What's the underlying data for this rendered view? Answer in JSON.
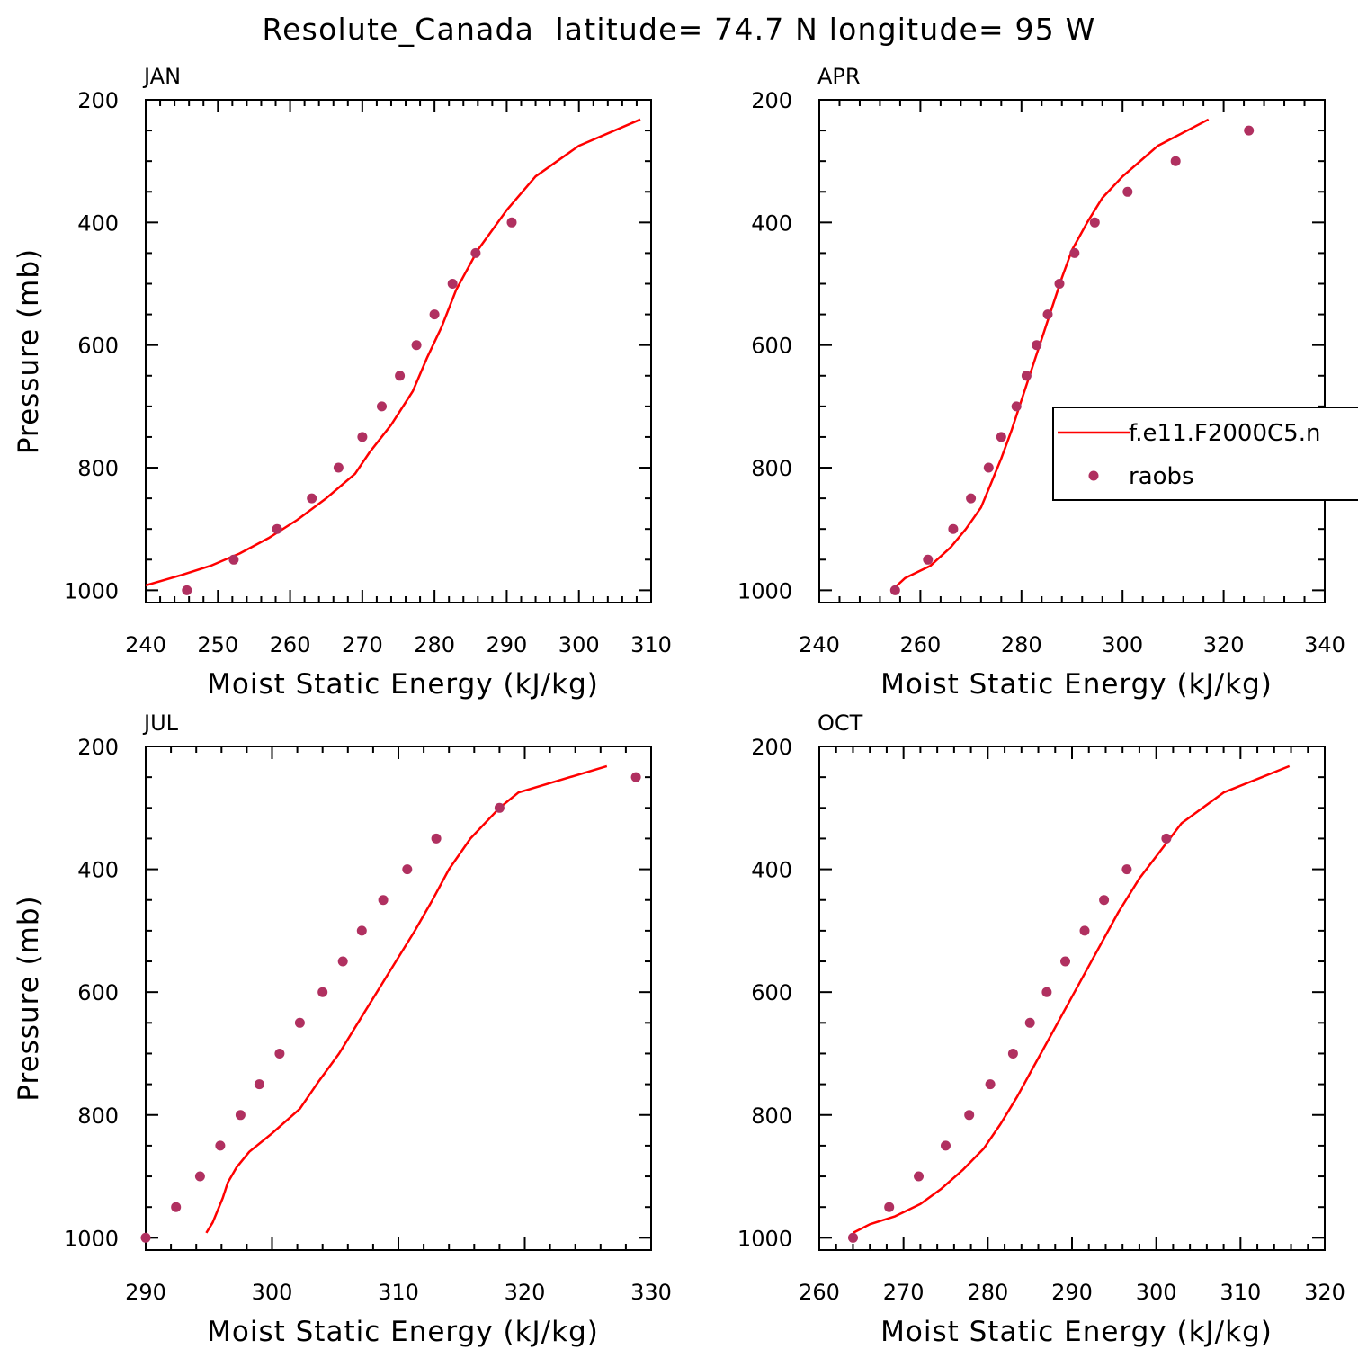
{
  "title": "Resolute_Canada  latitude= 74.7 N longitude= 95 W",
  "colors": {
    "model_line": "#ff0000",
    "raobs_marker": "#b03060",
    "axes": "#000000"
  },
  "legend": {
    "placement": "right-middle of APR panel",
    "entries": [
      "f.e11.F2000C5.n",
      "raobs"
    ]
  },
  "chart_data": [
    {
      "type": "line",
      "panel": "JAN",
      "title": "JAN",
      "xlabel": "Moist Static Energy (kJ/kg)",
      "ylabel": "Pressure (mb)",
      "xlim": [
        240,
        310
      ],
      "ylim": [
        1020,
        200
      ],
      "xticks": [
        240,
        250,
        260,
        270,
        280,
        290,
        300,
        310
      ],
      "yticks": [
        200,
        400,
        600,
        800,
        1000
      ],
      "series": [
        {
          "name": "f.e11.F2000C5.n",
          "style": "line",
          "points": [
            [
              240,
              992
            ],
            [
              245,
              975
            ],
            [
              249,
              960
            ],
            [
              253,
              940
            ],
            [
              257,
              915
            ],
            [
              261,
              885
            ],
            [
              265,
              850
            ],
            [
              269,
              810
            ],
            [
              271,
              775
            ],
            [
              274,
              730
            ],
            [
              277,
              675
            ],
            [
              279,
              620
            ],
            [
              281,
              570
            ],
            [
              283,
              510
            ],
            [
              286,
              445
            ],
            [
              290,
              380
            ],
            [
              294,
              325
            ],
            [
              300,
              275
            ],
            [
              308.5,
              232
            ]
          ]
        },
        {
          "name": "raobs",
          "style": "markers",
          "points": [
            [
              245.7,
              1000
            ],
            [
              252.2,
              950
            ],
            [
              258.2,
              900
            ],
            [
              263,
              850
            ],
            [
              266.7,
              800
            ],
            [
              270,
              750
            ],
            [
              272.7,
              700
            ],
            [
              275.2,
              650
            ],
            [
              277.5,
              600
            ],
            [
              280,
              550
            ],
            [
              282.5,
              500
            ],
            [
              285.7,
              450
            ],
            [
              290.7,
              400
            ]
          ]
        }
      ]
    },
    {
      "type": "line",
      "panel": "APR",
      "title": "APR",
      "xlabel": "Moist Static Energy (kJ/kg)",
      "ylabel": "",
      "xlim": [
        240,
        340
      ],
      "ylim": [
        1020,
        200
      ],
      "xticks": [
        240,
        260,
        280,
        300,
        320,
        340
      ],
      "yticks": [
        200,
        400,
        600,
        800,
        1000
      ],
      "series": [
        {
          "name": "f.e11.F2000C5.n",
          "style": "line",
          "points": [
            [
              255,
              995
            ],
            [
              257,
              980
            ],
            [
              262,
              960
            ],
            [
              266,
              930
            ],
            [
              269,
              900
            ],
            [
              272,
              865
            ],
            [
              274,
              825
            ],
            [
              276,
              785
            ],
            [
              278,
              740
            ],
            [
              280,
              690
            ],
            [
              282,
              640
            ],
            [
              284,
              590
            ],
            [
              286,
              540
            ],
            [
              288,
              490
            ],
            [
              290,
              445
            ],
            [
              293,
              400
            ],
            [
              296,
              360
            ],
            [
              300,
              325
            ],
            [
              307,
              275
            ],
            [
              317,
              232
            ]
          ]
        },
        {
          "name": "raobs",
          "style": "markers",
          "points": [
            [
              255,
              1000
            ],
            [
              261.5,
              950
            ],
            [
              266.5,
              900
            ],
            [
              270,
              850
            ],
            [
              273.5,
              800
            ],
            [
              276,
              750
            ],
            [
              279,
              700
            ],
            [
              281,
              650
            ],
            [
              283,
              600
            ],
            [
              285.2,
              550
            ],
            [
              287.5,
              500
            ],
            [
              290.5,
              450
            ],
            [
              294.5,
              400
            ],
            [
              301,
              350
            ],
            [
              310.5,
              300
            ],
            [
              325,
              250
            ]
          ]
        }
      ]
    },
    {
      "type": "line",
      "panel": "JUL",
      "title": "JUL",
      "xlabel": "Moist Static Energy (kJ/kg)",
      "ylabel": "Pressure (mb)",
      "xlim": [
        290,
        330
      ],
      "ylim": [
        1020,
        200
      ],
      "xticks": [
        290,
        300,
        310,
        320,
        330
      ],
      "yticks": [
        200,
        400,
        600,
        800,
        1000
      ],
      "series": [
        {
          "name": "f.e11.F2000C5.n",
          "style": "line",
          "points": [
            [
              294.8,
              992
            ],
            [
              295.3,
              975
            ],
            [
              295.7,
              955
            ],
            [
              296.1,
              935
            ],
            [
              296.5,
              910
            ],
            [
              297.2,
              885
            ],
            [
              298.2,
              860
            ],
            [
              300,
              830
            ],
            [
              302.2,
              790
            ],
            [
              303.7,
              745
            ],
            [
              305.3,
              700
            ],
            [
              306.8,
              650
            ],
            [
              308.3,
              600
            ],
            [
              309.8,
              550
            ],
            [
              311.3,
              500
            ],
            [
              312.7,
              450
            ],
            [
              314,
              400
            ],
            [
              315.7,
              350
            ],
            [
              318,
              300
            ],
            [
              319.5,
              275
            ],
            [
              326.5,
              232
            ]
          ]
        },
        {
          "name": "raobs",
          "style": "markers",
          "points": [
            [
              290,
              1000
            ],
            [
              292.4,
              950
            ],
            [
              294.3,
              900
            ],
            [
              295.9,
              850
            ],
            [
              297.5,
              800
            ],
            [
              299,
              750
            ],
            [
              300.6,
              700
            ],
            [
              302.2,
              650
            ],
            [
              304,
              600
            ],
            [
              305.6,
              550
            ],
            [
              307.1,
              500
            ],
            [
              308.8,
              450
            ],
            [
              310.7,
              400
            ],
            [
              313,
              350
            ],
            [
              318,
              300
            ],
            [
              328.8,
              250
            ]
          ]
        }
      ]
    },
    {
      "type": "line",
      "panel": "OCT",
      "title": "OCT",
      "xlabel": "Moist Static Energy (kJ/kg)",
      "ylabel": "",
      "xlim": [
        260,
        320
      ],
      "ylim": [
        1020,
        200
      ],
      "xticks": [
        260,
        270,
        280,
        290,
        300,
        310,
        320
      ],
      "yticks": [
        200,
        400,
        600,
        800,
        1000
      ],
      "series": [
        {
          "name": "f.e11.F2000C5.n",
          "style": "line",
          "points": [
            [
              264,
              992
            ],
            [
              266,
              978
            ],
            [
              269,
              965
            ],
            [
              272,
              945
            ],
            [
              274.5,
              920
            ],
            [
              277,
              890
            ],
            [
              279.5,
              855
            ],
            [
              281.5,
              815
            ],
            [
              283.5,
              770
            ],
            [
              285.5,
              720
            ],
            [
              287.5,
              670
            ],
            [
              289.5,
              620
            ],
            [
              291.5,
              570
            ],
            [
              293.5,
              520
            ],
            [
              295.5,
              470
            ],
            [
              298,
              415
            ],
            [
              300.5,
              370
            ],
            [
              303,
              325
            ],
            [
              308,
              275
            ],
            [
              315.8,
              232
            ]
          ]
        },
        {
          "name": "raobs",
          "style": "markers",
          "points": [
            [
              264,
              1000
            ],
            [
              268.3,
              950
            ],
            [
              271.8,
              900
            ],
            [
              275,
              850
            ],
            [
              277.8,
              800
            ],
            [
              280.3,
              750
            ],
            [
              283,
              700
            ],
            [
              285,
              650
            ],
            [
              287,
              600
            ],
            [
              289.2,
              550
            ],
            [
              291.5,
              500
            ],
            [
              293.8,
              450
            ],
            [
              296.5,
              400
            ],
            [
              301.2,
              350
            ]
          ]
        }
      ]
    }
  ]
}
